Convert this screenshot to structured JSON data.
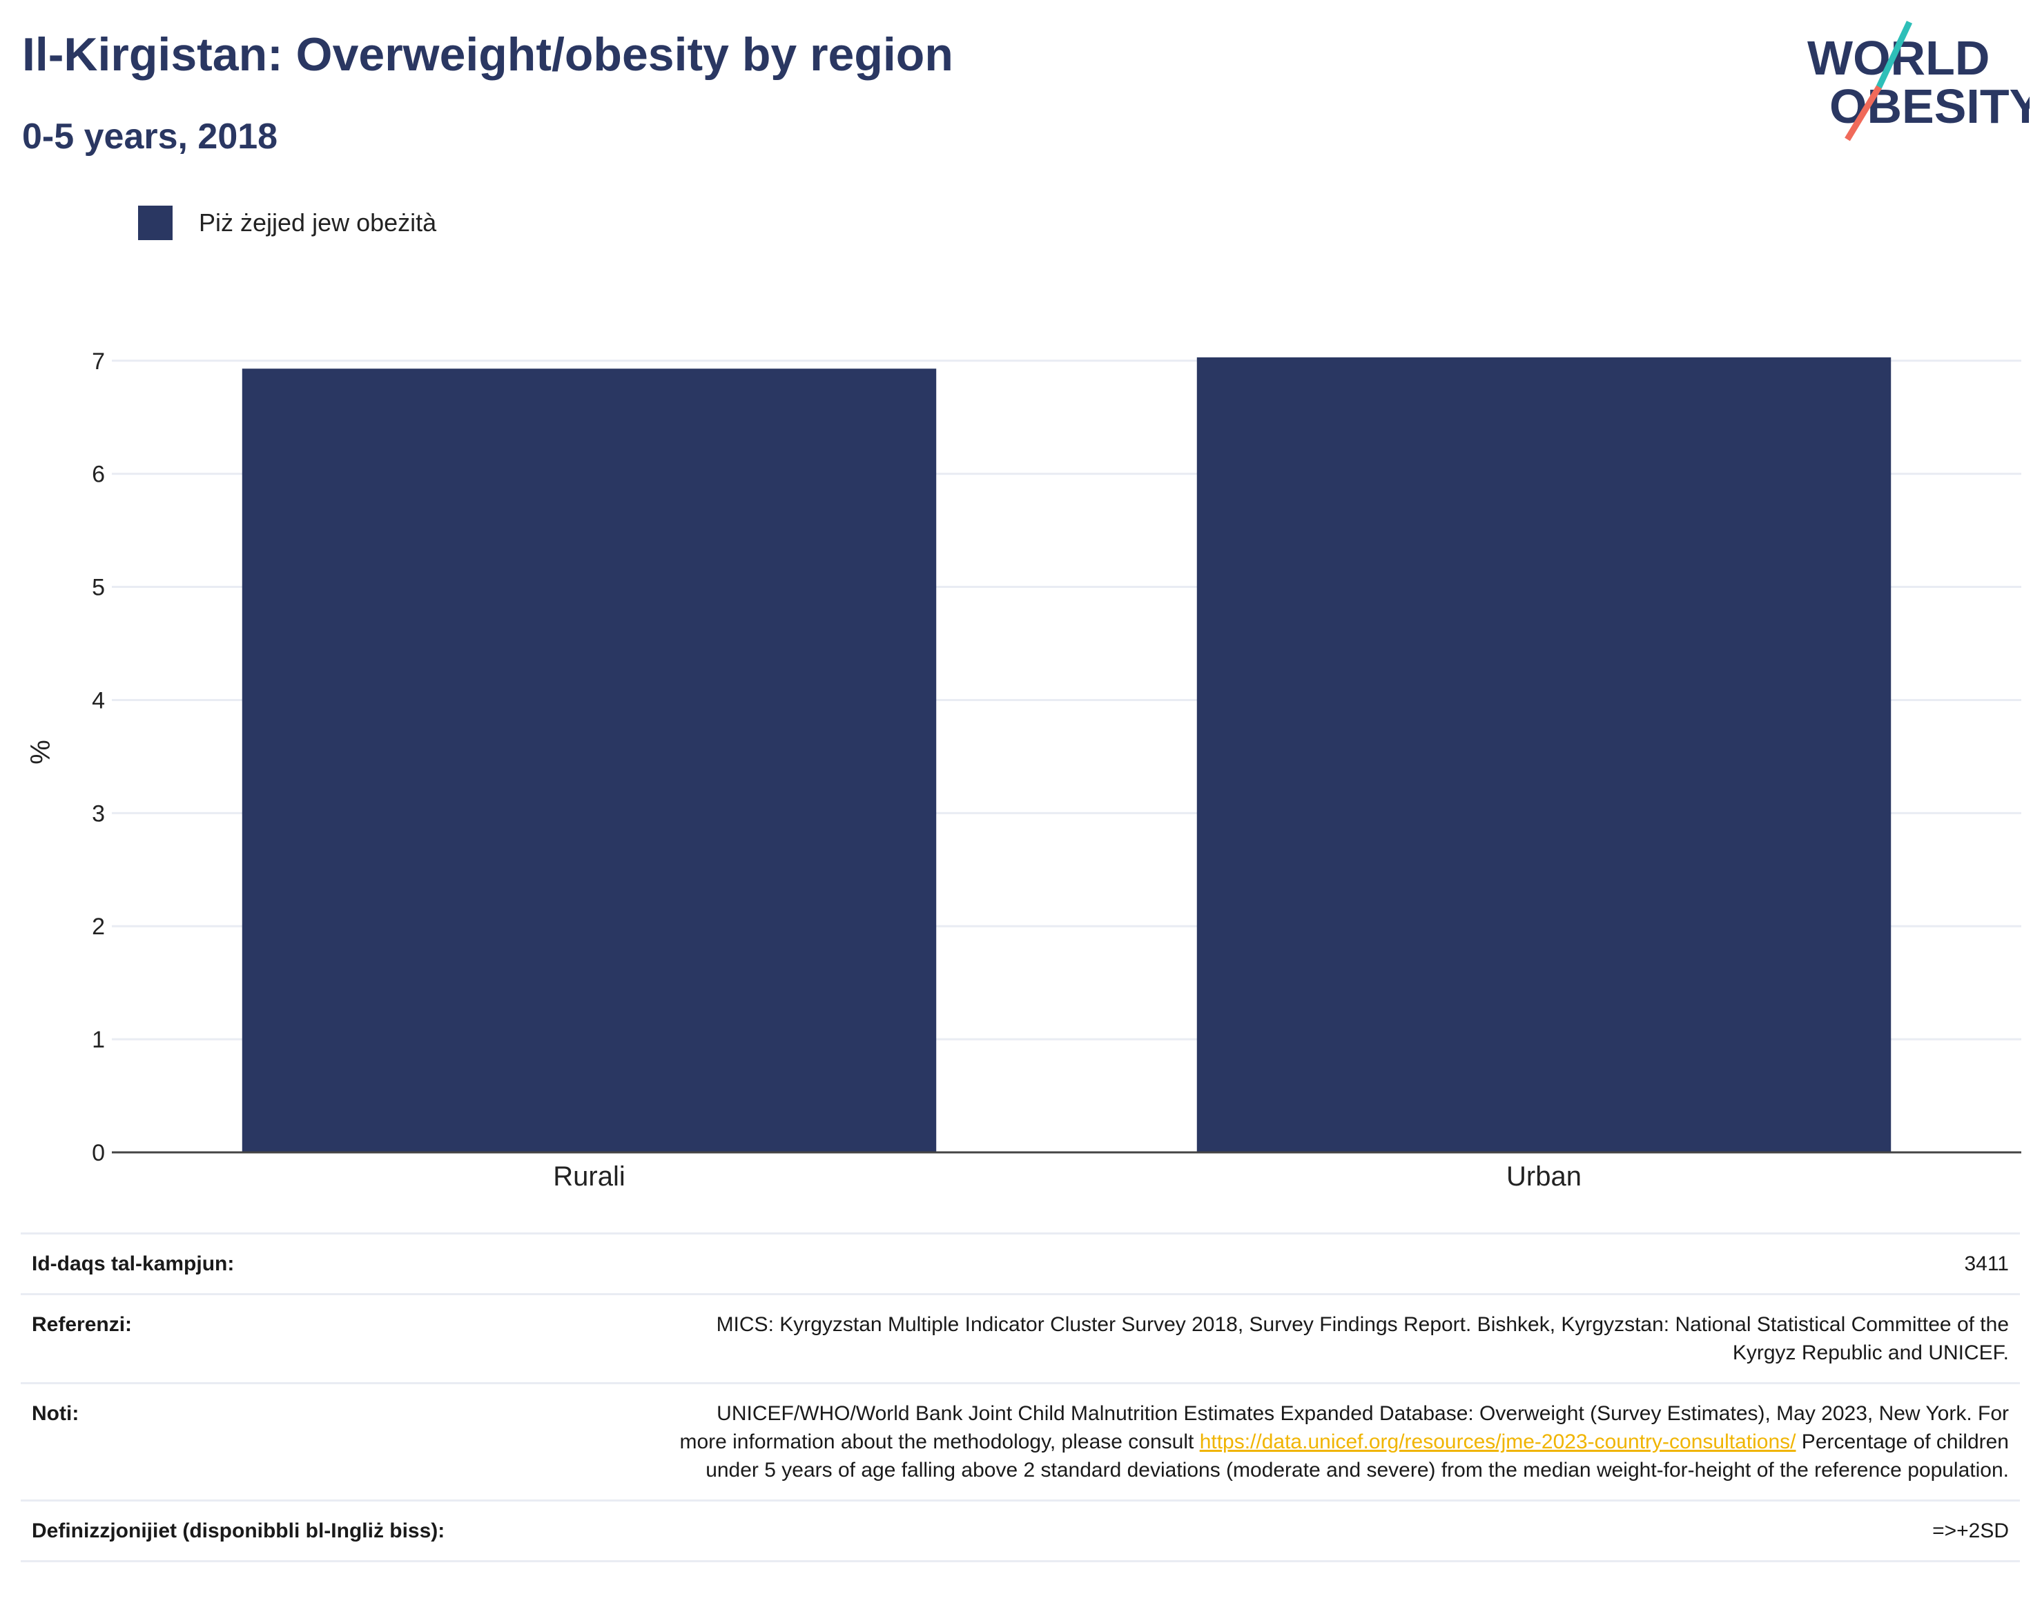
{
  "header": {
    "title": "Il-Kirgistan: Overweight/obesity by region",
    "subtitle": "0-5 years, 2018"
  },
  "logo": {
    "line1": "WORLD",
    "line2": "OBESITY",
    "accent_teal": "#2ebfb8",
    "accent_coral": "#f06a5a",
    "text_color": "#2a3762"
  },
  "legend": {
    "label": "Piż żejjed jew obeżità",
    "color": "#2a3762"
  },
  "chart_data": {
    "type": "bar",
    "categories": [
      "Rurali",
      "Urban"
    ],
    "values": [
      6.93,
      7.03
    ],
    "ylabel": "%",
    "ylim": [
      0,
      7.2
    ],
    "yticks": [
      "0",
      "1",
      "2",
      "3",
      "4",
      "5",
      "6",
      "7"
    ],
    "grid": true,
    "bar_color": "#2a3762"
  },
  "info": {
    "sample_size_label": "Id-daqs tal-kampjun:",
    "sample_size_value": "3411",
    "references_label": "Referenzi:",
    "references_value": "MICS: Kyrgyzstan Multiple Indicator Cluster Survey 2018, Survey Findings Report. Bishkek, Kyrgyzstan: National Statistical Committee of the Kyrgyz Republic and UNICEF.",
    "notes_label": "Noti:",
    "notes_text_1": "UNICEF/WHO/World Bank Joint Child Malnutrition Estimates Expanded Database: Overweight (Survey Estimates), May 2023, New York. For more information about the methodology, please consult ",
    "notes_link": "https://data.unicef.org/resources/jme-2023-country-consultations/",
    "notes_text_2": " Percentage of children under 5 years of age falling above 2 standard deviations (moderate and severe) from the median weight-for-height of the reference population.",
    "definitions_label": "Definizzjonijiet (disponibbli bl-Ingliż biss):",
    "definitions_value": "=>+2SD"
  }
}
